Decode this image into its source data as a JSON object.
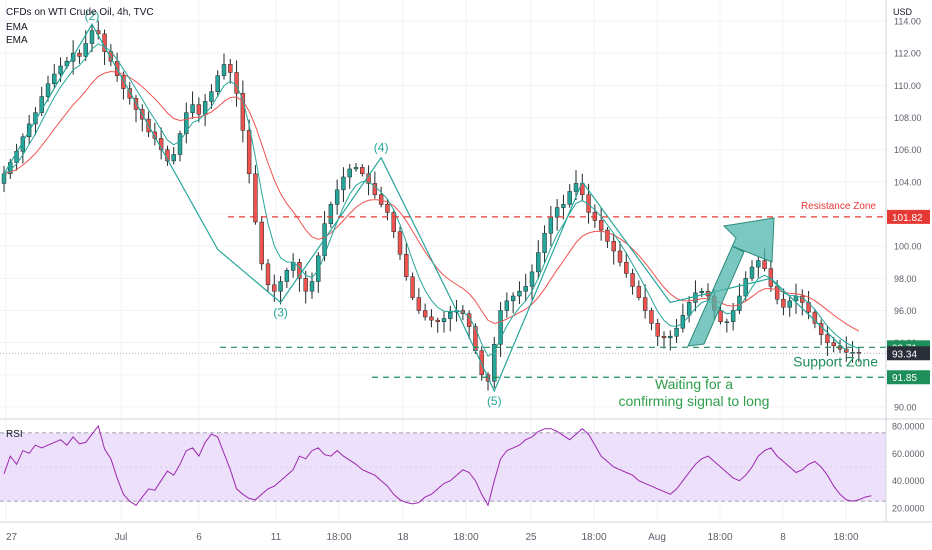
{
  "header": {
    "title": "CFDs on WTI Crude Oil, 4h, TVC",
    "indicators": [
      "EMA",
      "EMA"
    ],
    "currency": "USD"
  },
  "colors": {
    "up": "#26a69a",
    "down": "#ef5350",
    "ema_fast": "#26a69a",
    "ema_slow": "#ef5350",
    "resistance": "#e53935",
    "support": "#1e8e5a",
    "rsi_line": "#9c27b0",
    "rsi_band": "#ede0fa",
    "arrow": "#4db6ac"
  },
  "price_axis": {
    "ticks": [
      "114.00",
      "112.00",
      "110.00",
      "108.00",
      "106.00",
      "104.00",
      "102.00",
      "100.00",
      "98.00",
      "96.00",
      "94.00",
      "92.00",
      "90.00"
    ],
    "badges": [
      {
        "label": "101.82",
        "value": 101.82,
        "color": "#e53935"
      },
      {
        "label": "93.71",
        "value": 93.71,
        "color": "#1e8e5a"
      },
      {
        "label": "93.34",
        "value": 93.34,
        "color": "#2a2e39"
      },
      {
        "label": "91.85",
        "value": 91.85,
        "color": "#1e8e5a"
      }
    ]
  },
  "time_axis": {
    "labels": [
      "27",
      "Jul",
      "6",
      "11",
      "18:00",
      "18",
      "18:00",
      "25",
      "18:00",
      "Aug",
      "18:00",
      "8",
      "18:00"
    ]
  },
  "chart_data": [
    {
      "type": "candlestick",
      "title": "CFDs on WTI Crude Oil, 4h, TVC",
      "ylim": [
        89.5,
        115
      ],
      "x_range": [
        0,
        140
      ],
      "series": [
        {
          "name": "EMA"
        },
        {
          "name": "EMA"
        }
      ],
      "closes": [
        104.5,
        105.2,
        105.9,
        106.8,
        107.6,
        108.3,
        109.3,
        110.1,
        110.7,
        111.2,
        111.5,
        112.0,
        111.8,
        112.6,
        113.4,
        113.2,
        112.1,
        111.5,
        110.6,
        109.8,
        109.2,
        108.5,
        107.9,
        107.1,
        106.7,
        106.0,
        105.3,
        105.7,
        107.0,
        108.3,
        108.8,
        108.2,
        109.0,
        109.6,
        110.6,
        111.3,
        110.8,
        109.5,
        107.2,
        104.5,
        101.5,
        98.9,
        97.6,
        97.2,
        97.8,
        98.5,
        99.0,
        98.0,
        97.2,
        97.8,
        99.4,
        101.4,
        102.6,
        103.5,
        104.3,
        104.8,
        104.9,
        104.5,
        103.9,
        103.2,
        102.6,
        102.1,
        100.9,
        99.5,
        98.1,
        96.8,
        96.0,
        95.6,
        95.4,
        95.3,
        95.5,
        95.9,
        96.0,
        95.8,
        95.0,
        93.5,
        92.0,
        91.6,
        93.9,
        96.0,
        96.6,
        96.9,
        97.2,
        97.5,
        98.4,
        99.6,
        100.8,
        101.8,
        102.4,
        102.6,
        103.4,
        103.9,
        103.2,
        102.1,
        101.6,
        101.0,
        100.3,
        99.7,
        99.0,
        98.3,
        97.5,
        96.8,
        96.0,
        95.2,
        94.4,
        94.3,
        94.4,
        94.9,
        95.7,
        96.5,
        97.1,
        97.2,
        96.9,
        96.0,
        95.3,
        95.3,
        96.0,
        96.9,
        98.0,
        98.7,
        99.1,
        98.6,
        97.5,
        96.7,
        96.2,
        96.6,
        96.9,
        96.5,
        95.9,
        95.2,
        94.5,
        94.0,
        93.8,
        93.6,
        93.4,
        93.4,
        93.34
      ],
      "ema_points": [
        [
          0,
          104
        ],
        [
          10,
          109
        ],
        [
          18,
          110.8
        ],
        [
          26,
          108
        ],
        [
          36,
          109.8
        ],
        [
          42,
          102
        ],
        [
          50,
          99
        ],
        [
          60,
          103.2
        ],
        [
          66,
          99.8
        ],
        [
          74,
          97
        ],
        [
          80,
          95
        ],
        [
          88,
          100.5
        ],
        [
          96,
          101
        ],
        [
          104,
          97.5
        ],
        [
          112,
          96.4
        ],
        [
          122,
          98.3
        ],
        [
          130,
          97
        ],
        [
          137,
          95
        ]
      ],
      "wave_line": [
        [
          0,
          104.5
        ],
        [
          14,
          113.8
        ],
        [
          34,
          99.8
        ],
        [
          44,
          96.5
        ],
        [
          60,
          105.5
        ],
        [
          72,
          96
        ],
        [
          78,
          91
        ],
        [
          92,
          104
        ],
        [
          106,
          96.5
        ],
        [
          122,
          98
        ],
        [
          134,
          93.5
        ]
      ],
      "wave_labels": [
        {
          "label": "(2)",
          "x": 14,
          "y": 113.8
        },
        {
          "label": "(3)",
          "x": 44,
          "y": 96.5
        },
        {
          "label": "(4)",
          "x": 60,
          "y": 105.5
        },
        {
          "label": "(5)",
          "x": 78,
          "y": 91
        }
      ],
      "resistance": {
        "value": 101.82,
        "label": "Resistance Zone"
      },
      "support_upper": 93.71,
      "support_lower": 91.85,
      "support_label": "Support Zone",
      "current_price": 93.34,
      "annotation": [
        "Waiting for a",
        "confirming signal to long"
      ]
    },
    {
      "type": "line",
      "title": "RSI",
      "ylim": [
        15,
        82
      ],
      "y_ticks": [
        "80.0000",
        "60.0000",
        "40.0000",
        "20.0000"
      ],
      "band": [
        25,
        75
      ],
      "values": [
        45,
        58,
        52,
        62,
        60,
        66,
        64,
        66,
        68,
        70,
        66,
        72,
        67,
        68,
        74,
        80,
        63,
        56,
        42,
        30,
        25,
        22,
        28,
        34,
        33,
        40,
        47,
        44,
        52,
        62,
        64,
        58,
        68,
        74,
        72,
        60,
        48,
        34,
        30,
        27,
        26,
        30,
        34,
        36,
        40,
        44,
        48,
        58,
        56,
        62,
        64,
        59,
        58,
        62,
        58,
        55,
        52,
        48,
        46,
        44,
        40,
        36,
        30,
        26,
        24,
        23,
        24,
        28,
        30,
        34,
        38,
        40,
        44,
        48,
        46,
        40,
        30,
        22,
        40,
        56,
        62,
        64,
        66,
        70,
        72,
        76,
        78,
        78,
        76,
        73,
        70,
        74,
        78,
        74,
        66,
        58,
        54,
        50,
        48,
        46,
        44,
        40,
        38,
        36,
        34,
        32,
        30,
        34,
        40,
        46,
        52,
        56,
        58,
        54,
        50,
        46,
        42,
        40,
        44,
        50,
        58,
        62,
        64,
        58,
        54,
        50,
        46,
        48,
        52,
        54,
        50,
        44,
        36,
        30,
        26,
        25,
        26,
        28,
        29
      ]
    }
  ]
}
